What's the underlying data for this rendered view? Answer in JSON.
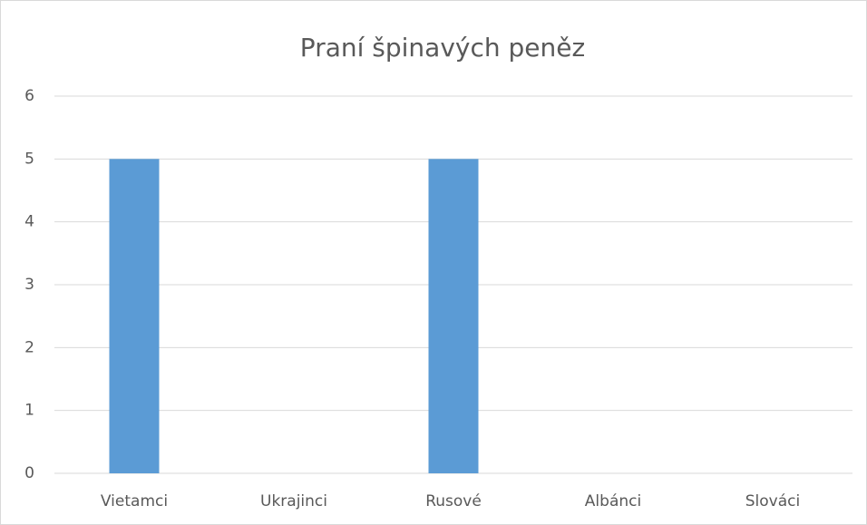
{
  "chart_data": {
    "type": "bar",
    "title": "Praní špinavých peněz",
    "categories": [
      "Vietamci",
      "Ukrajinci",
      "Rusové",
      "Albánci",
      "Slováci"
    ],
    "values": [
      5,
      0,
      5,
      0,
      0
    ],
    "color": "#5b9bd5",
    "ylim": [
      0,
      6
    ],
    "yticks": [
      0,
      1,
      2,
      3,
      4,
      5,
      6
    ],
    "grid": true
  }
}
